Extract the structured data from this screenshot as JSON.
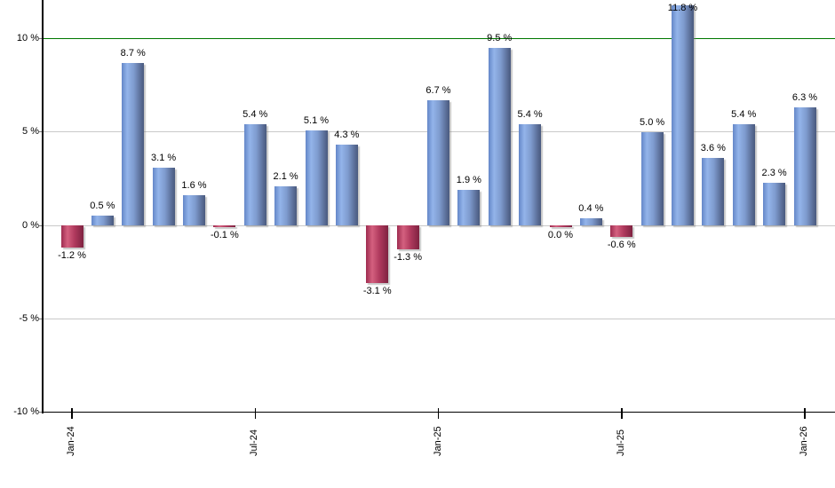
{
  "chart_data": {
    "type": "bar",
    "title": "",
    "unit": "%",
    "categories": [
      "Jan-24",
      "Feb-24",
      "Mar-24",
      "Apr-24",
      "May-24",
      "Jun-24",
      "Jul-24",
      "Aug-24",
      "Sep-24",
      "Oct-24",
      "Nov-24",
      "Dec-24",
      "Jan-25",
      "Feb-25",
      "Mar-25",
      "Apr-25",
      "May-25",
      "Jun-25",
      "Jul-25",
      "Aug-25",
      "Sep-25",
      "Oct-25",
      "Nov-25",
      "Dec-25",
      "Jan-26"
    ],
    "values": [
      -1.2,
      0.5,
      8.7,
      3.1,
      1.6,
      -0.1,
      5.4,
      2.1,
      5.1,
      4.3,
      -3.1,
      -1.3,
      6.7,
      1.9,
      9.5,
      5.4,
      0.0,
      0.4,
      -0.6,
      5.0,
      11.8,
      3.6,
      5.4,
      2.3,
      6.3
    ],
    "value_labels": [
      "-1.2 %",
      "0.5 %",
      "8.7 %",
      "3.1 %",
      "1.6 %",
      "-0.1 %",
      "5.4 %",
      "2.1 %",
      "5.1 %",
      "4.3 %",
      "-3.1 %",
      "-1.3 %",
      "6.7 %",
      "1.9 %",
      "9.5 %",
      "5.4 %",
      "0.0 %",
      "0.4 %",
      "-0.6 %",
      "5.0 %",
      "11.8 %",
      "3.6 %",
      "5.4 %",
      "2.3 %",
      "6.3 %"
    ],
    "x_axis_tick_labels": [
      "Jan-24",
      "Jul-24",
      "Jan-25",
      "Jul-25",
      "Jan-26"
    ],
    "x_axis_tick_indices": [
      0,
      6,
      12,
      18,
      24
    ],
    "y_axis_tick_labels": [
      "10 %",
      "5 %",
      "0 %",
      "-5 %",
      "-10 %"
    ],
    "y_axis_tick_values": [
      10,
      5,
      0,
      -5,
      -10
    ],
    "ylim": [
      -10.5,
      12.1
    ],
    "grid": true,
    "legend_position": "none",
    "xlabel": "",
    "ylabel": "",
    "highlight_line": {
      "value": 10,
      "color": "#007700"
    },
    "colors": {
      "positive_bar": "#7fa3dc",
      "negative_bar": "#c24064",
      "gridline": "#c9c9c9",
      "axis": "#000000",
      "label_text": "#000000"
    }
  }
}
